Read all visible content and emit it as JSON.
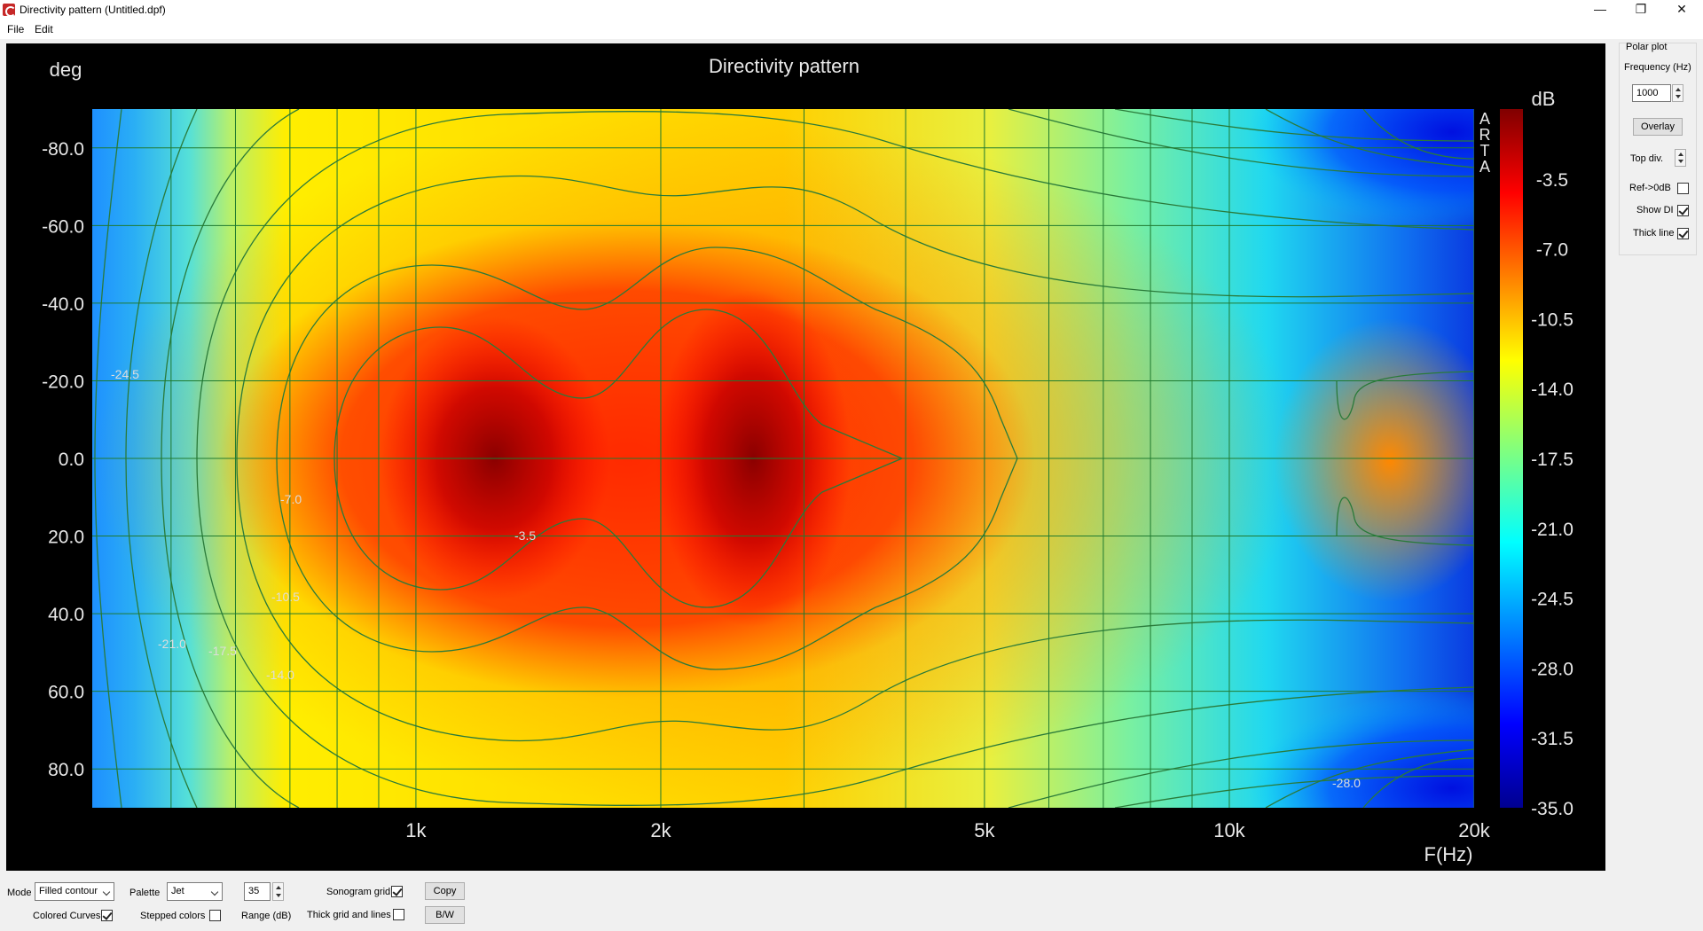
{
  "window": {
    "title": "Directivity pattern (Untitled.dpf)",
    "minimize_glyph": "—",
    "restore_glyph": "❐",
    "close_glyph": "✕"
  },
  "menu": {
    "items": [
      "File",
      "Edit"
    ]
  },
  "chart_data": {
    "type": "heatmap",
    "title": "Directivity pattern",
    "ylabel": "deg",
    "xlabel": "F(Hz)",
    "x_scale": "log",
    "xlim": [
      400,
      20000
    ],
    "ylim": [
      -90,
      90
    ],
    "y_ticks": [
      "-80.0",
      "-60.0",
      "-40.0",
      "-20.0",
      "0.0",
      "20.0",
      "40.0",
      "60.0",
      "80.0"
    ],
    "x_ticks": [
      {
        "value": 1000,
        "label": "1k"
      },
      {
        "value": 2000,
        "label": "2k"
      },
      {
        "value": 5000,
        "label": "5k"
      },
      {
        "value": 10000,
        "label": "10k"
      },
      {
        "value": 20000,
        "label": "20k"
      }
    ],
    "colorbar": {
      "unit": "dB",
      "range": [
        -35,
        0
      ],
      "ticks": [
        "-3.5",
        "-7.0",
        "-10.5",
        "-14.0",
        "-17.5",
        "-21.0",
        "-24.5",
        "-28.0",
        "-31.5",
        "-35.0"
      ],
      "palette": "Jet"
    },
    "side_text": [
      "A",
      "R",
      "T",
      "A"
    ],
    "contour_levels": [
      -3.5,
      -7.0,
      -10.5,
      -14.0,
      -17.5,
      -21.0,
      -24.5,
      -28.0
    ],
    "contour_labels": [
      "-24.5",
      "-7.0",
      "-3.5",
      "-10.5",
      "-21.0",
      "-17.5",
      "-14.0",
      "-28.0"
    ],
    "grid": true,
    "values_description_note": "",
    "hotspots": [
      {
        "freq": 1250,
        "deg": 0,
        "db": -1.0
      },
      {
        "freq": 2600,
        "deg": 0,
        "db": -0.5
      }
    ]
  },
  "side_panel": {
    "group_label": "Polar plot",
    "frequency_label": "Frequency (Hz)",
    "frequency_value": "1000",
    "overlay_label": "Overlay",
    "top_div_label": "Top div.",
    "ref_label": "Ref->0dB",
    "ref_checked": false,
    "show_di_label": "Show DI",
    "show_di_checked": true,
    "thick_line_label": "Thick line",
    "thick_line_checked": true
  },
  "bottom": {
    "mode_label": "Mode",
    "mode_value": "Filled contour",
    "palette_label": "Palette",
    "palette_value": "Jet",
    "range_value": "35",
    "range_label": "Range (dB)",
    "sonogram_grid_label": "Sonogram grid",
    "sonogram_grid_checked": true,
    "copy_label": "Copy",
    "colored_curves_label": "Colored Curves",
    "colored_curves_checked": true,
    "stepped_colors_label": "Stepped colors",
    "stepped_colors_checked": false,
    "thick_grid_label": "Thick grid and  lines",
    "thick_grid_checked": false,
    "bw_label": "B/W"
  }
}
